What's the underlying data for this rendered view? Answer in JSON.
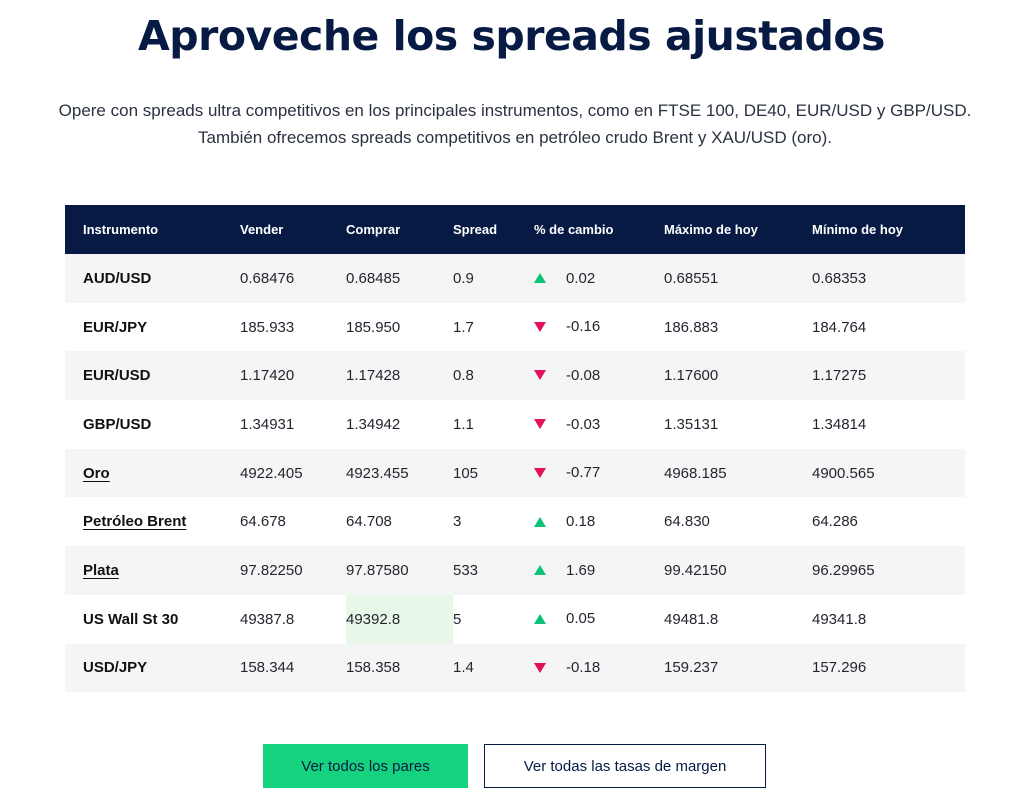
{
  "header": {
    "title": "Aproveche los spreads ajustados",
    "subtitle_line1": "Opere con spreads ultra competitivos en los principales instrumentos, como en FTSE 100, DE40, EUR/USD y GBP/USD.",
    "subtitle_line2": "También ofrecemos spreads competitivos en petróleo crudo Brent y XAU/USD (oro)."
  },
  "table": {
    "columns": [
      "Instrumento",
      "Vender",
      "Comprar",
      "Spread",
      "% de cambio",
      "Máximo de hoy",
      "Mínimo de hoy"
    ],
    "rows": [
      {
        "instrument": "AUD/USD",
        "sell": "0.68476",
        "buy": "0.68485",
        "spread": "0.9",
        "direction": "up",
        "change": "0.02",
        "high": "0.68551",
        "low": "0.68353"
      },
      {
        "instrument": "EUR/JPY",
        "sell": "185.933",
        "buy": "185.950",
        "spread": "1.7",
        "direction": "down",
        "change": "-0.16",
        "high": "186.883",
        "low": "184.764"
      },
      {
        "instrument": "EUR/USD",
        "sell": "1.17420",
        "buy": "1.17428",
        "spread": "0.8",
        "direction": "down",
        "change": "-0.08",
        "high": "1.17600",
        "low": "1.17275"
      },
      {
        "instrument": "GBP/USD",
        "sell": "1.34931",
        "buy": "1.34942",
        "spread": "1.1",
        "direction": "down",
        "change": "-0.03",
        "high": "1.35131",
        "low": "1.34814"
      },
      {
        "instrument": "Oro",
        "sell": "4922.405",
        "buy": "4923.455",
        "spread": "105",
        "direction": "down",
        "change": "-0.77",
        "high": "4968.185",
        "low": "4900.565"
      },
      {
        "instrument": "Petróleo Brent",
        "sell": "64.678",
        "buy": "64.708",
        "spread": "3",
        "direction": "up",
        "change": "0.18",
        "high": "64.830",
        "low": "64.286"
      },
      {
        "instrument": "Plata",
        "sell": "97.82250",
        "buy": "97.87580",
        "spread": "533",
        "direction": "up",
        "change": "1.69",
        "high": "99.42150",
        "low": "96.29965"
      },
      {
        "instrument": "US Wall St 30",
        "sell": "49387.8",
        "buy": "49392.8",
        "spread": "5",
        "direction": "up",
        "change": "0.05",
        "high": "49481.8",
        "low": "49341.8"
      },
      {
        "instrument": "USD/JPY",
        "sell": "158.344",
        "buy": "158.358",
        "spread": "1.4",
        "direction": "down",
        "change": "-0.18",
        "high": "159.237",
        "low": "157.296"
      }
    ]
  },
  "buttons": {
    "all_pairs": "Ver todos los pares",
    "margin_rates": "Ver todas las tasas de margen"
  },
  "colors": {
    "navy": "#061a44",
    "green_button": "#14d27e",
    "up_arrow": "#0bc279",
    "down_arrow": "#e2105d",
    "highlight": "#e8f7e8"
  }
}
